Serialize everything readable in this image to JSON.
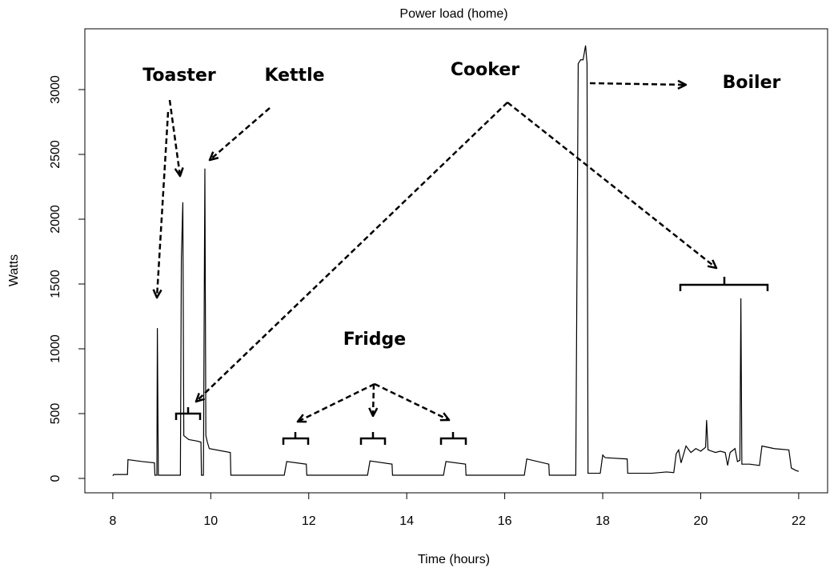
{
  "chart_data": {
    "type": "line",
    "title": "Power load (home)",
    "x_label": "Time (hours)",
    "y_label": "Watts",
    "x": [
      8.0,
      8.02,
      8.3,
      8.31,
      8.6,
      8.85,
      8.86,
      8.9,
      8.91,
      8.93,
      9.38,
      9.4,
      9.43,
      9.45,
      9.55,
      9.7,
      9.8,
      9.81,
      9.85,
      9.88,
      9.9,
      9.93,
      9.97,
      10.4,
      10.41,
      11.5,
      11.55,
      11.95,
      11.96,
      13.2,
      13.25,
      13.7,
      13.71,
      14.75,
      14.8,
      15.2,
      15.21,
      16.4,
      16.45,
      16.9,
      16.91,
      17.45,
      17.5,
      17.55,
      17.6,
      17.65,
      17.68,
      17.7,
      17.95,
      18.0,
      18.05,
      18.5,
      18.51,
      19.0,
      19.3,
      19.45,
      19.5,
      19.55,
      19.6,
      19.7,
      19.8,
      19.9,
      20.0,
      20.1,
      20.12,
      20.15,
      20.3,
      20.4,
      20.5,
      20.55,
      20.6,
      20.7,
      20.75,
      20.8,
      20.82,
      20.84,
      21.0,
      21.2,
      21.25,
      21.5,
      21.8,
      21.85,
      21.95,
      22.0
    ],
    "values": [
      20,
      30,
      30,
      145,
      130,
      120,
      25,
      25,
      1160,
      25,
      25,
      1700,
      2130,
      330,
      300,
      290,
      280,
      25,
      25,
      2390,
      330,
      280,
      230,
      200,
      25,
      25,
      130,
      110,
      25,
      25,
      135,
      110,
      25,
      25,
      130,
      110,
      25,
      25,
      150,
      110,
      25,
      25,
      3200,
      3230,
      3230,
      3340,
      3200,
      40,
      40,
      180,
      160,
      150,
      40,
      40,
      50,
      45,
      190,
      220,
      120,
      250,
      200,
      230,
      210,
      240,
      450,
      220,
      200,
      210,
      200,
      100,
      200,
      230,
      130,
      140,
      1390,
      110,
      110,
      100,
      250,
      230,
      220,
      80,
      60,
      55
    ],
    "color": "#000000",
    "xlim": [
      7.43,
      22.59
    ],
    "xticks": [
      8,
      10,
      12,
      14,
      16,
      18,
      20,
      22
    ],
    "ylim": [
      -111,
      3469
    ],
    "yticks": [
      0,
      500,
      1000,
      1500,
      2000,
      2500,
      3000
    ],
    "grid": false,
    "annotations": [
      "Toaster",
      "Kettle",
      "Cooker",
      "Boiler",
      "Fridge"
    ]
  }
}
